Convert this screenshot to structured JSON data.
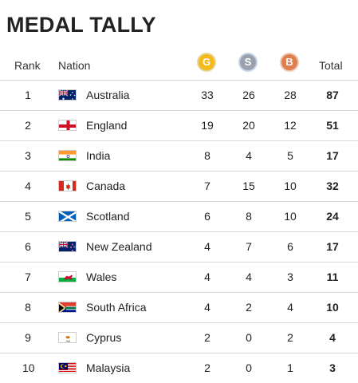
{
  "title": "MEDAL TALLY",
  "headers": {
    "rank": "Rank",
    "nation": "Nation",
    "gold": "G",
    "silver": "S",
    "bronze": "B",
    "total": "Total"
  },
  "colors": {
    "gold": "#f5b918",
    "silver": "#9aa1ad",
    "bronze": "#df7e4e"
  },
  "rows": [
    {
      "rank": "1",
      "nation": "Australia",
      "flag": "australia-flag-icon",
      "gold": "33",
      "silver": "26",
      "bronze": "28",
      "total": "87"
    },
    {
      "rank": "2",
      "nation": "England",
      "flag": "england-flag-icon",
      "gold": "19",
      "silver": "20",
      "bronze": "12",
      "total": "51"
    },
    {
      "rank": "3",
      "nation": "India",
      "flag": "india-flag-icon",
      "gold": "8",
      "silver": "4",
      "bronze": "5",
      "total": "17"
    },
    {
      "rank": "4",
      "nation": "Canada",
      "flag": "canada-flag-icon",
      "gold": "7",
      "silver": "15",
      "bronze": "10",
      "total": "32"
    },
    {
      "rank": "5",
      "nation": "Scotland",
      "flag": "scotland-flag-icon",
      "gold": "6",
      "silver": "8",
      "bronze": "10",
      "total": "24"
    },
    {
      "rank": "6",
      "nation": "New Zealand",
      "flag": "new-zealand-flag-icon",
      "gold": "4",
      "silver": "7",
      "bronze": "6",
      "total": "17"
    },
    {
      "rank": "7",
      "nation": "Wales",
      "flag": "wales-flag-icon",
      "gold": "4",
      "silver": "4",
      "bronze": "3",
      "total": "11"
    },
    {
      "rank": "8",
      "nation": "South Africa",
      "flag": "south-africa-flag-icon",
      "gold": "4",
      "silver": "2",
      "bronze": "4",
      "total": "10"
    },
    {
      "rank": "9",
      "nation": "Cyprus",
      "flag": "cyprus-flag-icon",
      "gold": "2",
      "silver": "0",
      "bronze": "2",
      "total": "4"
    },
    {
      "rank": "10",
      "nation": "Malaysia",
      "flag": "malaysia-flag-icon",
      "gold": "2",
      "silver": "0",
      "bronze": "1",
      "total": "3"
    }
  ]
}
